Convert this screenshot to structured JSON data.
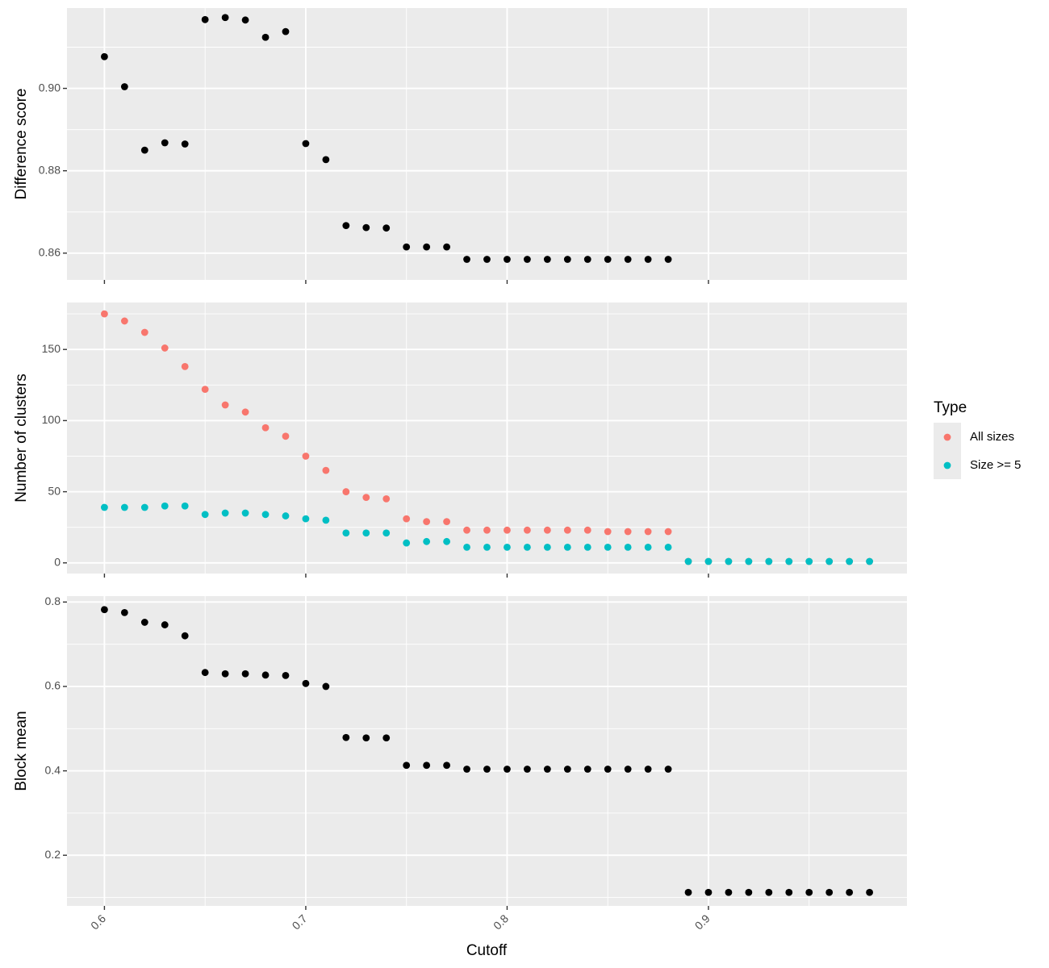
{
  "chart_data": {
    "type": "scatter",
    "xlabel": "Cutoff",
    "x_ticks": [
      0.6,
      0.7,
      0.8,
      0.9
    ],
    "x_tick_labels": [
      "0.6",
      "0.7",
      "0.8",
      "0.9"
    ],
    "xlim": [
      0.5814,
      0.9986
    ],
    "legend": {
      "title": "Type",
      "placement": "right",
      "entries": [
        {
          "label": "All sizes",
          "color": "#F8766D"
        },
        {
          "label": "Size >= 5",
          "color": "#00BFC4"
        }
      ]
    },
    "panels": [
      {
        "ylabel": "Difference score",
        "ylim": [
          0.8535,
          0.9195
        ],
        "y_ticks": [
          0.86,
          0.88,
          0.9
        ],
        "y_tick_labels": [
          "0.86",
          "0.88",
          "0.90"
        ],
        "series": [
          {
            "color": "#000000",
            "x": [
              0.6,
              0.61,
              0.62,
              0.63,
              0.64,
              0.65,
              0.66,
              0.67,
              0.68,
              0.69,
              0.7,
              0.71,
              0.72,
              0.73,
              0.74,
              0.75,
              0.76,
              0.77,
              0.78,
              0.79,
              0.8,
              0.81,
              0.82,
              0.83,
              0.84,
              0.85,
              0.86,
              0.87,
              0.88
            ],
            "y": [
              0.9077,
              0.9004,
              0.885,
              0.8868,
              0.8865,
              0.9167,
              0.9172,
              0.9166,
              0.9124,
              0.9138,
              0.8866,
              0.8827,
              0.8667,
              0.8662,
              0.8661,
              0.8615,
              0.8615,
              0.8615,
              0.8585,
              0.8585,
              0.8585,
              0.8585,
              0.8585,
              0.8585,
              0.8585,
              0.8585,
              0.8585,
              0.8585,
              0.8585
            ]
          }
        ]
      },
      {
        "ylabel": "Number of clusters",
        "ylim": [
          -7.5,
          183
        ],
        "y_ticks": [
          0,
          50,
          100,
          150
        ],
        "y_tick_labels": [
          "0",
          "50",
          "100",
          "150"
        ],
        "series": [
          {
            "name": "All sizes",
            "color": "#F8766D",
            "x": [
              0.6,
              0.61,
              0.62,
              0.63,
              0.64,
              0.65,
              0.66,
              0.67,
              0.68,
              0.69,
              0.7,
              0.71,
              0.72,
              0.73,
              0.74,
              0.75,
              0.76,
              0.77,
              0.78,
              0.79,
              0.8,
              0.81,
              0.82,
              0.83,
              0.84,
              0.85,
              0.86,
              0.87,
              0.88,
              0.89,
              0.9,
              0.91,
              0.92,
              0.93,
              0.94,
              0.95,
              0.96,
              0.97,
              0.98
            ],
            "y": [
              175,
              170,
              162,
              151,
              138,
              122,
              111,
              106,
              95,
              89,
              75,
              65,
              50,
              46,
              45,
              31,
              29,
              29,
              23,
              23,
              23,
              23,
              23,
              23,
              23,
              22,
              22,
              22,
              22,
              1,
              1,
              1,
              1,
              1,
              1,
              1,
              1,
              1,
              1
            ]
          },
          {
            "name": "Size >= 5",
            "color": "#00BFC4",
            "x": [
              0.6,
              0.61,
              0.62,
              0.63,
              0.64,
              0.65,
              0.66,
              0.67,
              0.68,
              0.69,
              0.7,
              0.71,
              0.72,
              0.73,
              0.74,
              0.75,
              0.76,
              0.77,
              0.78,
              0.79,
              0.8,
              0.81,
              0.82,
              0.83,
              0.84,
              0.85,
              0.86,
              0.87,
              0.88,
              0.89,
              0.9,
              0.91,
              0.92,
              0.93,
              0.94,
              0.95,
              0.96,
              0.97,
              0.98
            ],
            "y": [
              39,
              39,
              39,
              40,
              40,
              34,
              35,
              35,
              34,
              33,
              31,
              30,
              21,
              21,
              21,
              14,
              15,
              15,
              11,
              11,
              11,
              11,
              11,
              11,
              11,
              11,
              11,
              11,
              11,
              1,
              1,
              1,
              1,
              1,
              1,
              1,
              1,
              1,
              1
            ]
          }
        ]
      },
      {
        "ylabel": "Block mean",
        "ylim": [
          0.08,
          0.814
        ],
        "y_ticks": [
          0.2,
          0.4,
          0.6,
          0.8
        ],
        "y_tick_labels": [
          "0.2",
          "0.4",
          "0.6",
          "0.8"
        ],
        "series": [
          {
            "color": "#000000",
            "x": [
              0.6,
              0.61,
              0.62,
              0.63,
              0.64,
              0.65,
              0.66,
              0.67,
              0.68,
              0.69,
              0.7,
              0.71,
              0.72,
              0.73,
              0.74,
              0.75,
              0.76,
              0.77,
              0.78,
              0.79,
              0.8,
              0.81,
              0.82,
              0.83,
              0.84,
              0.85,
              0.86,
              0.87,
              0.88,
              0.89,
              0.9,
              0.91,
              0.92,
              0.93,
              0.94,
              0.95,
              0.96,
              0.97,
              0.98
            ],
            "y": [
              0.782,
              0.775,
              0.752,
              0.746,
              0.72,
              0.633,
              0.63,
              0.63,
              0.627,
              0.626,
              0.607,
              0.6,
              0.479,
              0.478,
              0.478,
              0.413,
              0.413,
              0.413,
              0.404,
              0.404,
              0.404,
              0.404,
              0.404,
              0.404,
              0.404,
              0.404,
              0.404,
              0.404,
              0.404,
              0.112,
              0.112,
              0.112,
              0.112,
              0.112,
              0.112,
              0.112,
              0.112,
              0.112,
              0.112
            ]
          }
        ]
      }
    ]
  }
}
